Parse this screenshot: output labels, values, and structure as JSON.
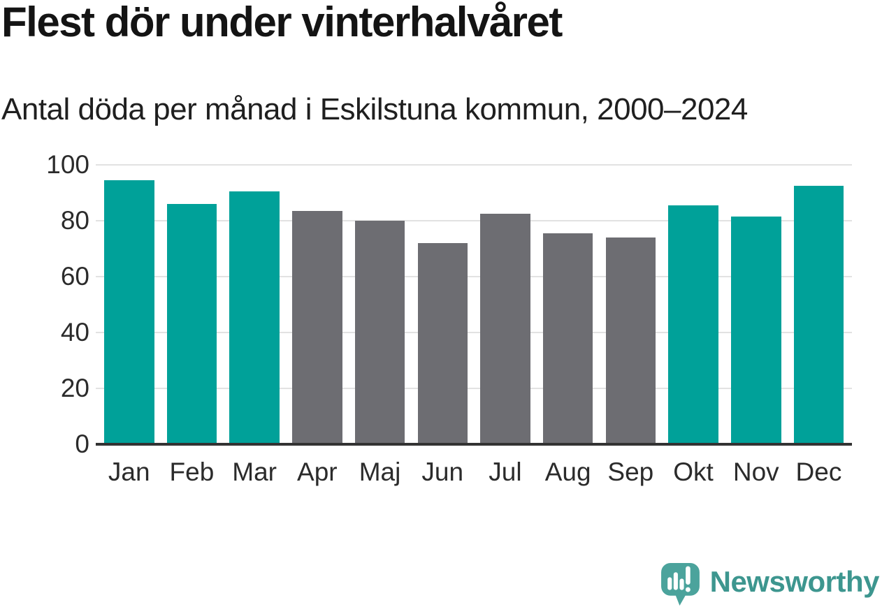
{
  "title": "Flest dör under vinterhalvåret",
  "subtitle": "Antal döda per månad i Eskilstuna kommun, 2000–2024",
  "chart_data": {
    "type": "bar",
    "title": "Flest dör under vinterhalvåret",
    "subtitle": "Antal döda per månad i Eskilstuna kommun, 2000–2024",
    "categories": [
      "Jan",
      "Feb",
      "Mar",
      "Apr",
      "Maj",
      "Jun",
      "Jul",
      "Aug",
      "Sep",
      "Okt",
      "Nov",
      "Dec"
    ],
    "values": [
      94.5,
      86,
      90.5,
      83.5,
      80,
      72,
      82.5,
      75.5,
      74,
      85.5,
      81.5,
      92.5
    ],
    "bar_color_keys": [
      "winter",
      "winter",
      "winter",
      "summer",
      "summer",
      "summer",
      "summer",
      "summer",
      "summer",
      "winter",
      "winter",
      "winter"
    ],
    "colors": {
      "winter": "#00a199",
      "summer": "#6d6d72"
    },
    "xlabel": "",
    "ylabel": "",
    "y_ticks": [
      0,
      20,
      40,
      60,
      80,
      100
    ],
    "ylim": [
      0,
      100
    ],
    "grid": "horizontal",
    "legend": "none"
  },
  "branding": {
    "logo_text": "Newsworthy",
    "text_color": "#3d968f",
    "icon_color": "#4ba39c"
  }
}
